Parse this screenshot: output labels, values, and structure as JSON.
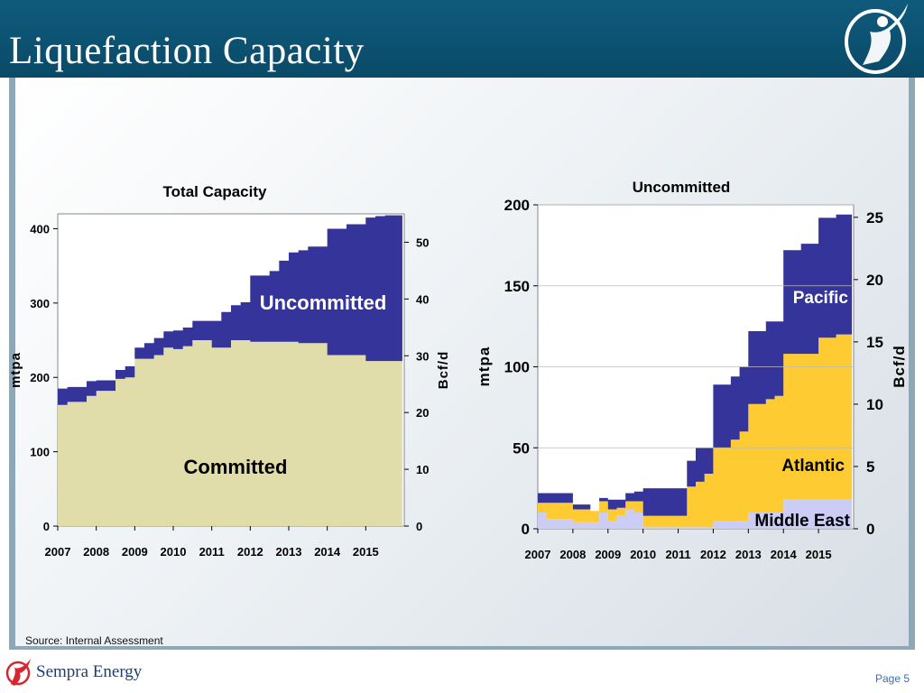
{
  "slide": {
    "title": "Liquefaction Capacity",
    "source": "Source:  Internal Assessment",
    "company": "Sempra Energy",
    "page": "Page 5"
  },
  "colors": {
    "committed": "#e0ddaa",
    "uncommitted": "#34349a",
    "atlantic": "#ffcb33",
    "middle_east": "#cccdf5",
    "header": "#0f5a7c"
  },
  "chart_data": [
    {
      "type": "area",
      "title": "Total Capacity",
      "ylabel": "mtpa",
      "y2label": "Bcf/d",
      "ylim": [
        0,
        420
      ],
      "y2lim": [
        0,
        55
      ],
      "yticks": [
        0,
        100,
        200,
        300,
        400
      ],
      "y2ticks": [
        0,
        10,
        20,
        30,
        40,
        50
      ],
      "xlim": [
        2007,
        2016
      ],
      "xticks": [
        "2007",
        "2008",
        "2009",
        "2010",
        "2011",
        "2012",
        "2013",
        "2014",
        "2015"
      ],
      "x": [
        2007,
        2007.25,
        2007.5,
        2007.75,
        2008,
        2008.25,
        2008.5,
        2008.75,
        2009,
        2009.25,
        2009.5,
        2009.75,
        2010,
        2010.25,
        2010.5,
        2010.75,
        2011,
        2011.25,
        2011.5,
        2011.75,
        2012,
        2012.25,
        2012.5,
        2012.75,
        2013,
        2013.25,
        2013.5,
        2013.75,
        2014,
        2014.25,
        2014.5,
        2014.75,
        2015,
        2015.25,
        2015.5,
        2015.75
      ],
      "series": [
        {
          "name": "Committed",
          "values": [
            163,
            167,
            167,
            175,
            182,
            182,
            198,
            200,
            225,
            225,
            230,
            240,
            238,
            242,
            250,
            250,
            240,
            240,
            250,
            250,
            248,
            248,
            248,
            248,
            248,
            246,
            246,
            246,
            230,
            230,
            230,
            230,
            222,
            222,
            222,
            222
          ]
        },
        {
          "name": "Uncommitted",
          "values": [
            22,
            20,
            20,
            20,
            14,
            14,
            12,
            15,
            15,
            21,
            23,
            22,
            25,
            25,
            26,
            26,
            36,
            48,
            47,
            51,
            89,
            89,
            95,
            109,
            120,
            125,
            130,
            130,
            170,
            170,
            176,
            176,
            193,
            195,
            196,
            196
          ]
        }
      ]
    },
    {
      "type": "area",
      "title": "Uncommitted",
      "ylabel": "mtpa",
      "y2label": "Bcf/d",
      "ylim": [
        0,
        200
      ],
      "y2lim": [
        0,
        26
      ],
      "yticks": [
        0,
        50,
        100,
        150,
        200
      ],
      "y2ticks": [
        0,
        5,
        10,
        15,
        20,
        25
      ],
      "xlim": [
        2007,
        2016
      ],
      "xticks": [
        "2007",
        "2008",
        "2009",
        "2010",
        "2011",
        "2012",
        "2013",
        "2014",
        "2015"
      ],
      "x": [
        2007,
        2007.25,
        2007.5,
        2007.75,
        2008,
        2008.25,
        2008.5,
        2008.75,
        2009,
        2009.25,
        2009.5,
        2009.75,
        2010,
        2010.25,
        2010.5,
        2010.75,
        2011,
        2011.25,
        2011.5,
        2011.75,
        2012,
        2012.25,
        2012.5,
        2012.75,
        2013,
        2013.25,
        2013.5,
        2013.75,
        2014,
        2014.25,
        2014.5,
        2014.75,
        2015,
        2015.25,
        2015.5,
        2015.75
      ],
      "series": [
        {
          "name": "Middle East",
          "values": [
            10,
            6,
            6,
            6,
            4,
            4,
            4,
            10,
            5,
            8,
            12,
            10,
            1,
            1,
            1,
            1,
            1,
            1,
            1,
            1,
            5,
            5,
            5,
            5,
            10,
            10,
            10,
            10,
            18,
            18,
            18,
            18,
            18,
            18,
            18,
            18
          ]
        },
        {
          "name": "Atlantic",
          "values": [
            6,
            10,
            10,
            10,
            8,
            8,
            7,
            7,
            7,
            5,
            5,
            7,
            7,
            7,
            7,
            7,
            7,
            25,
            28,
            33,
            45,
            45,
            50,
            55,
            67,
            67,
            70,
            72,
            90,
            90,
            90,
            90,
            100,
            100,
            102,
            102
          ]
        },
        {
          "name": "Pacific",
          "values": [
            6,
            6,
            6,
            6,
            3,
            3,
            0,
            2,
            6,
            5,
            5,
            6,
            17,
            17,
            17,
            17,
            17,
            16,
            21,
            16,
            39,
            39,
            39,
            40,
            45,
            45,
            48,
            46,
            64,
            64,
            68,
            68,
            74,
            74,
            74,
            74
          ]
        }
      ]
    }
  ]
}
